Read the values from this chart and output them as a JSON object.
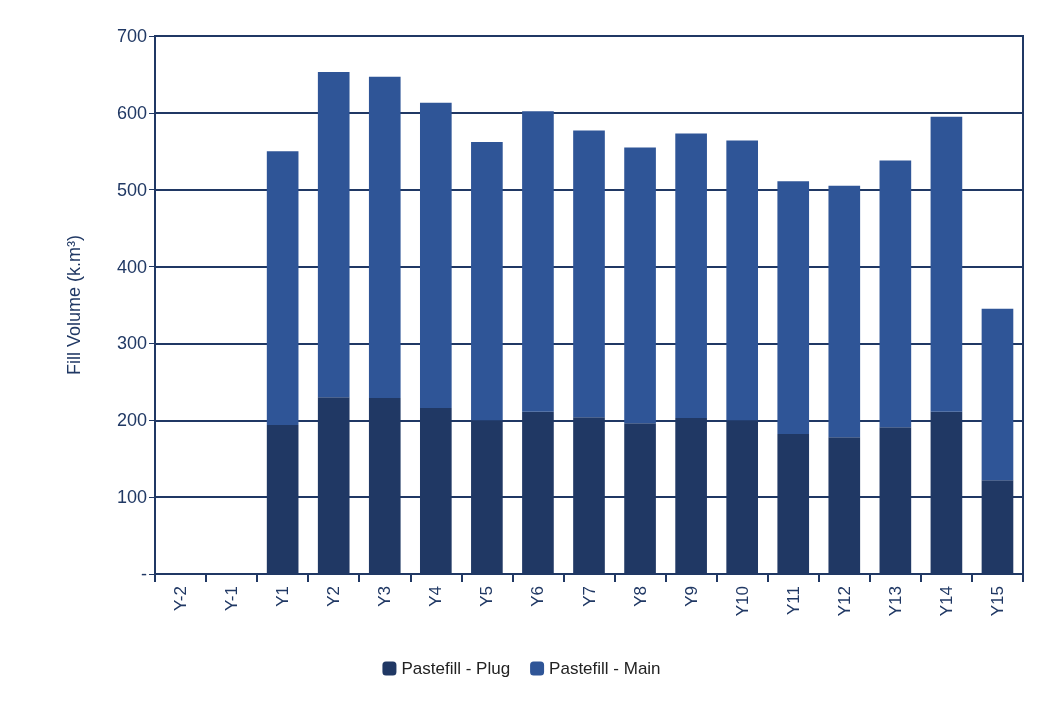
{
  "chart_data": {
    "type": "bar",
    "ylabel": "Fill Volume (k.m³)",
    "categories": [
      "Y-2",
      "Y-1",
      "Y1",
      "Y2",
      "Y3",
      "Y4",
      "Y5",
      "Y6",
      "Y7",
      "Y8",
      "Y9",
      "Y10",
      "Y11",
      "Y12",
      "Y13",
      "Y14",
      "Y15"
    ],
    "series": [
      {
        "name": "Pastefill - Plug",
        "color": "#203864",
        "values": [
          null,
          null,
          194,
          230,
          229,
          216,
          200,
          211,
          204,
          196,
          203,
          200,
          182,
          178,
          191,
          211,
          122
        ]
      },
      {
        "name": "Pastefill - Main",
        "color": "#2f5597",
        "values": [
          null,
          null,
          356,
          423,
          418,
          397,
          362,
          391,
          373,
          359,
          370,
          364,
          329,
          327,
          347,
          384,
          223
        ]
      }
    ],
    "stacked": true,
    "ylim": [
      0,
      700
    ],
    "yticks": [
      {
        "value": 0,
        "label": "-"
      },
      100,
      200,
      300,
      400,
      500,
      600,
      700
    ],
    "grid": "y",
    "legend": "bottom"
  }
}
